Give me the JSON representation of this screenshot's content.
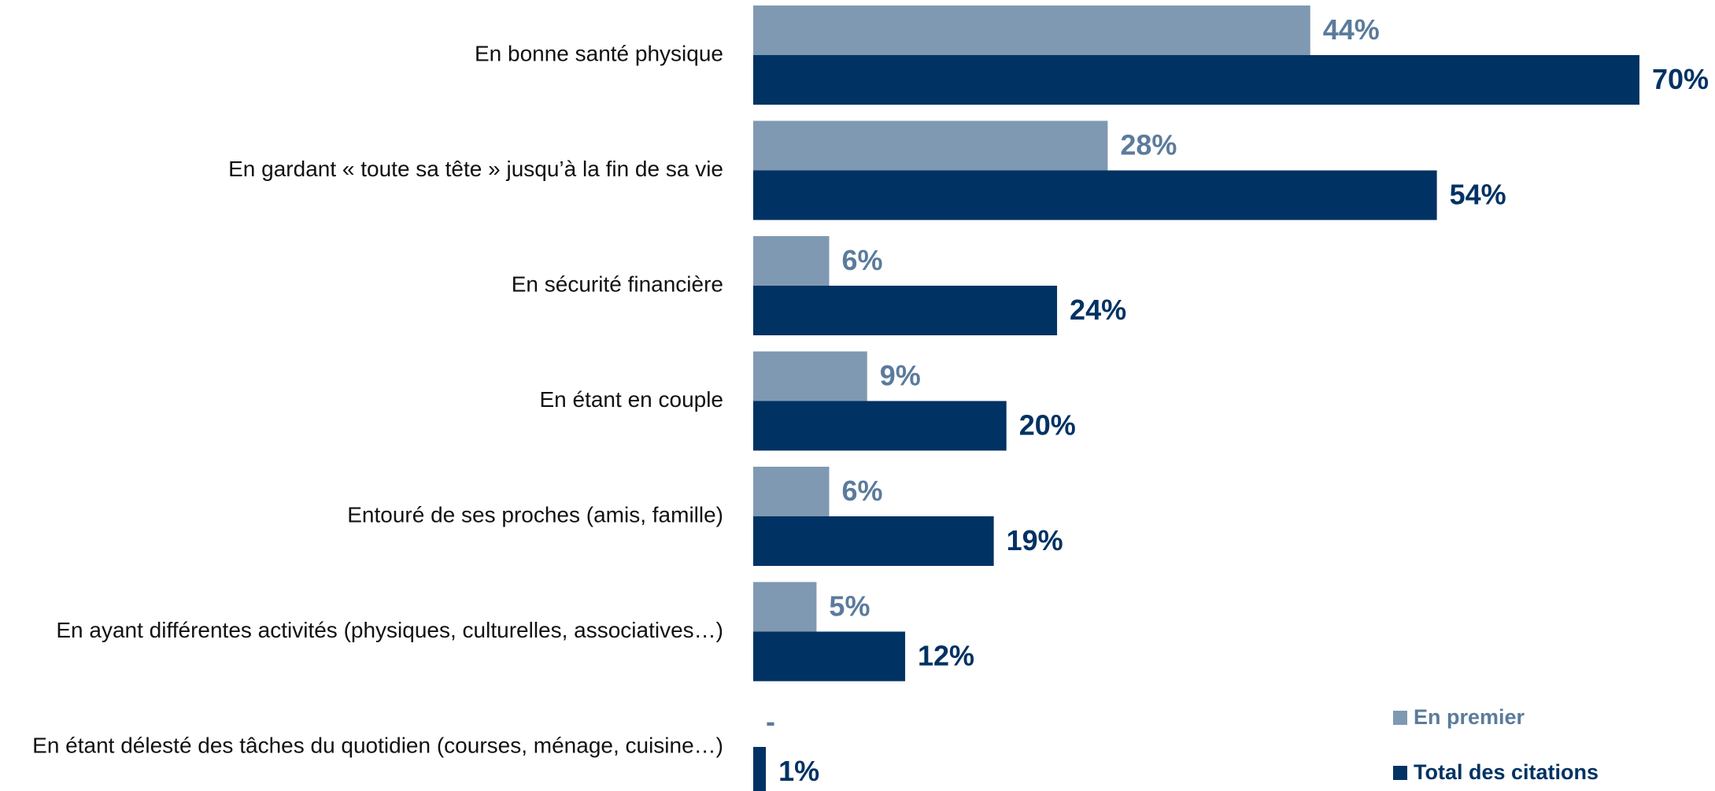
{
  "chart_data": {
    "type": "hbar",
    "categories": [
      "En bonne santé physique",
      "En gardant « toute sa tête » jusqu’à la fin de sa vie",
      "En sécurité financière",
      "En étant en couple",
      "Entouré de ses proches (amis, famille)",
      "En ayant différentes activités (physiques, culturelles, associatives…)",
      "En étant délesté des tâches du quotidien (courses, ménage, cuisine…)"
    ],
    "series": [
      {
        "name": "En premier",
        "color": "#7f99b2",
        "label_color": "#5b7b9c",
        "values": [
          44,
          28,
          6,
          9,
          6,
          5,
          null
        ],
        "value_labels": [
          "44%",
          "28%",
          "6%",
          "9%",
          "6%",
          "5%",
          "-"
        ]
      },
      {
        "name": "Total des citations",
        "color": "#003263",
        "label_color": "#003263",
        "values": [
          70,
          54,
          24,
          20,
          19,
          12,
          1
        ],
        "value_labels": [
          "70%",
          "54%",
          "24%",
          "20%",
          "19%",
          "12%",
          "1%"
        ]
      }
    ],
    "xlim": [
      0,
      70
    ],
    "legend": "bottom-right"
  }
}
